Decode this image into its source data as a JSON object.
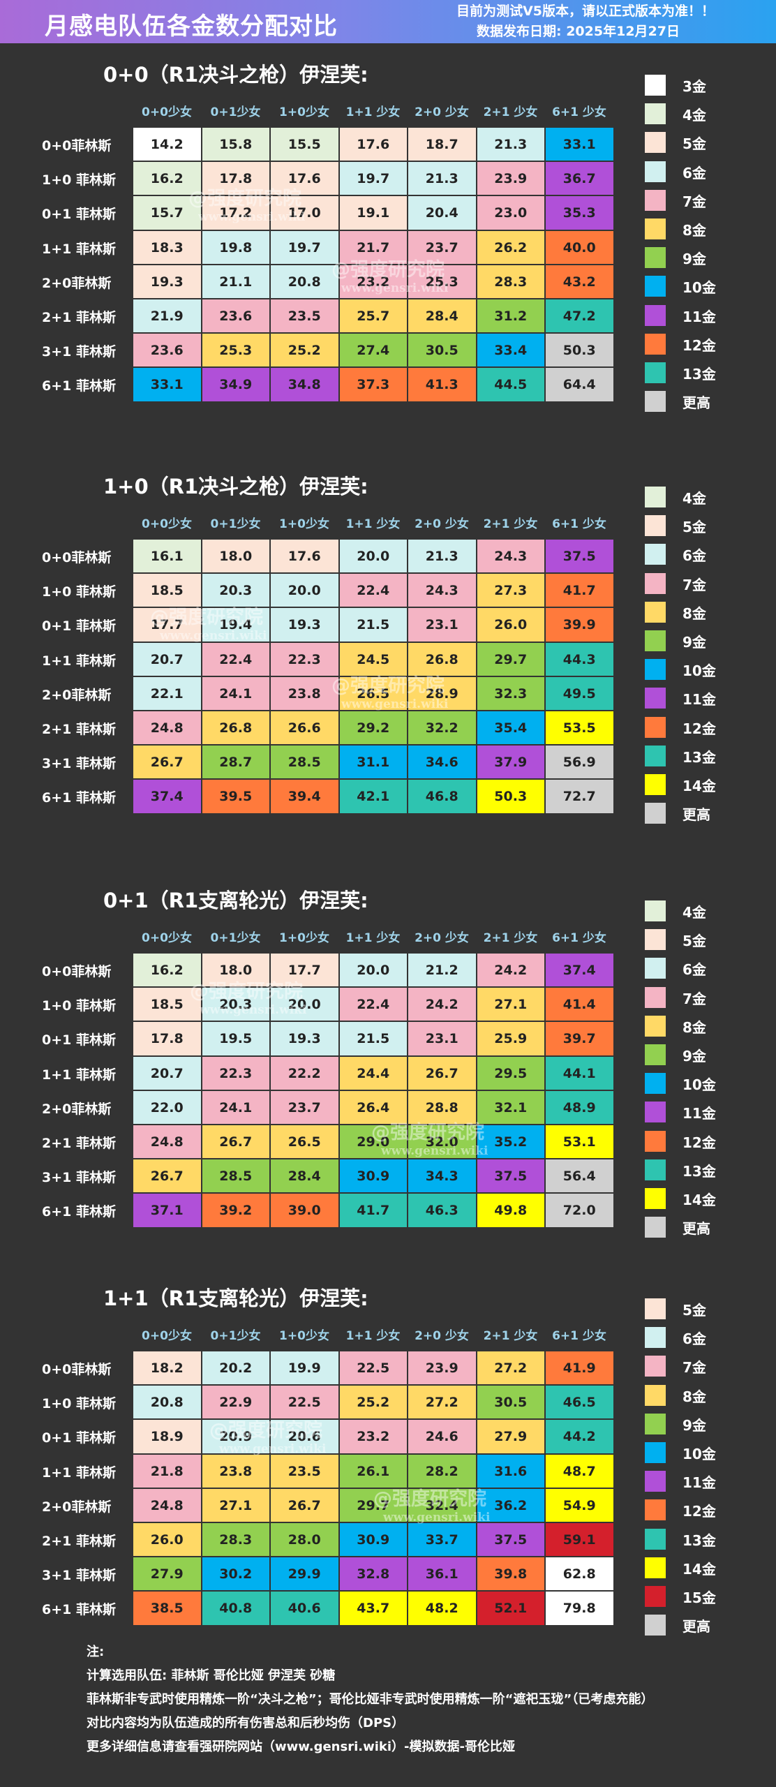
{
  "header": {
    "title": "月感电队伍各金数分配对比",
    "notice": "目前为测试V5版本，请以正式版本为准！！",
    "date": "数据发布日期: 2025年12月27日"
  },
  "columns": [
    "0+0少女",
    "0+1少女",
    "1+0少女",
    "1+1 少女",
    "2+0 少女",
    "2+1 少女",
    "6+1 少女"
  ],
  "rows": [
    "0+0菲林斯",
    "1+0 菲林斯",
    "0+1 菲林斯",
    "1+1  菲林斯",
    "2+0菲林斯",
    "2+1 菲林斯",
    "3+1 菲林斯",
    "6+1 菲林斯"
  ],
  "tier_colors": {
    "3": "#ffffff",
    "4": "#e2f0d9",
    "5": "#fce4d6",
    "6": "#d1f0f0",
    "7": "#f4b4c4",
    "8": "#ffd966",
    "9": "#92d050",
    "10": "#00b0f0",
    "11": "#b050d8",
    "12": "#ff7a3c",
    "13": "#2ec4b0",
    "14": "#ffff00",
    "15": "#d4202c",
    "high": "#d0d0d0"
  },
  "sections": [
    {
      "title": "0+0（R1决斗之枪）伊涅芙:",
      "values": [
        [
          "14.2",
          "15.8",
          "15.5",
          "17.6",
          "18.7",
          "21.3",
          "33.1"
        ],
        [
          "16.2",
          "17.8",
          "17.6",
          "19.7",
          "21.3",
          "23.9",
          "36.7"
        ],
        [
          "15.7",
          "17.2",
          "17.0",
          "19.1",
          "20.4",
          "23.0",
          "35.3"
        ],
        [
          "18.3",
          "19.8",
          "19.7",
          "21.7",
          "23.7",
          "26.2",
          "40.0"
        ],
        [
          "19.3",
          "21.1",
          "20.8",
          "23.2",
          "25.3",
          "28.3",
          "43.2"
        ],
        [
          "21.9",
          "23.6",
          "23.5",
          "25.7",
          "28.4",
          "31.2",
          "47.2"
        ],
        [
          "23.6",
          "25.3",
          "25.2",
          "27.4",
          "30.5",
          "33.4",
          "50.3"
        ],
        [
          "33.1",
          "34.9",
          "34.8",
          "37.3",
          "41.3",
          "44.5",
          "64.4"
        ]
      ],
      "tiers": [
        [
          "3",
          "4",
          "4",
          "5",
          "5",
          "6",
          "10"
        ],
        [
          "4",
          "5",
          "5",
          "6",
          "6",
          "7",
          "11"
        ],
        [
          "4",
          "5",
          "5",
          "5",
          "6",
          "7",
          "11"
        ],
        [
          "5",
          "6",
          "6",
          "7",
          "7",
          "8",
          "12"
        ],
        [
          "5",
          "6",
          "6",
          "7",
          "7",
          "8",
          "12"
        ],
        [
          "6",
          "7",
          "7",
          "8",
          "8",
          "9",
          "13"
        ],
        [
          "7",
          "8",
          "8",
          "9",
          "9",
          "10",
          "high"
        ],
        [
          "10",
          "11",
          "11",
          "12",
          "12",
          "13",
          "high"
        ]
      ],
      "legend": [
        {
          "tier": "3",
          "label": "3金"
        },
        {
          "tier": "4",
          "label": "4金"
        },
        {
          "tier": "5",
          "label": "5金"
        },
        {
          "tier": "6",
          "label": "6金"
        },
        {
          "tier": "7",
          "label": "7金"
        },
        {
          "tier": "8",
          "label": "8金"
        },
        {
          "tier": "9",
          "label": "9金"
        },
        {
          "tier": "10",
          "label": "10金"
        },
        {
          "tier": "11",
          "label": "11金"
        },
        {
          "tier": "12",
          "label": "12金"
        },
        {
          "tier": "13",
          "label": "13金"
        },
        {
          "tier": "high",
          "label": "更高"
        }
      ]
    },
    {
      "title": "1+0（R1决斗之枪）伊涅芙:",
      "values": [
        [
          "16.1",
          "18.0",
          "17.6",
          "20.0",
          "21.3",
          "24.3",
          "37.5"
        ],
        [
          "18.5",
          "20.3",
          "20.0",
          "22.4",
          "24.3",
          "27.3",
          "41.7"
        ],
        [
          "17.7",
          "19.4",
          "19.3",
          "21.5",
          "23.1",
          "26.0",
          "39.9"
        ],
        [
          "20.7",
          "22.4",
          "22.3",
          "24.5",
          "26.8",
          "29.7",
          "44.3"
        ],
        [
          "22.1",
          "24.1",
          "23.8",
          "26.5",
          "28.9",
          "32.3",
          "49.5"
        ],
        [
          "24.8",
          "26.8",
          "26.6",
          "29.2",
          "32.2",
          "35.4",
          "53.5"
        ],
        [
          "26.7",
          "28.7",
          "28.5",
          "31.1",
          "34.6",
          "37.9",
          "56.9"
        ],
        [
          "37.4",
          "39.5",
          "39.4",
          "42.1",
          "46.8",
          "50.3",
          "72.7"
        ]
      ],
      "tiers": [
        [
          "4",
          "5",
          "5",
          "6",
          "6",
          "7",
          "11"
        ],
        [
          "5",
          "6",
          "6",
          "7",
          "7",
          "8",
          "12"
        ],
        [
          "5",
          "6",
          "6",
          "6",
          "7",
          "8",
          "12"
        ],
        [
          "6",
          "7",
          "7",
          "8",
          "8",
          "9",
          "13"
        ],
        [
          "6",
          "7",
          "7",
          "8",
          "8",
          "9",
          "13"
        ],
        [
          "7",
          "8",
          "8",
          "9",
          "9",
          "10",
          "14"
        ],
        [
          "8",
          "9",
          "9",
          "10",
          "10",
          "11",
          "high"
        ],
        [
          "11",
          "12",
          "12",
          "13",
          "13",
          "14",
          "high"
        ]
      ],
      "legend": [
        {
          "tier": "4",
          "label": "4金"
        },
        {
          "tier": "5",
          "label": "5金"
        },
        {
          "tier": "6",
          "label": "6金"
        },
        {
          "tier": "7",
          "label": "7金"
        },
        {
          "tier": "8",
          "label": "8金"
        },
        {
          "tier": "9",
          "label": "9金"
        },
        {
          "tier": "10",
          "label": "10金"
        },
        {
          "tier": "11",
          "label": "11金"
        },
        {
          "tier": "12",
          "label": "12金"
        },
        {
          "tier": "13",
          "label": "13金"
        },
        {
          "tier": "14",
          "label": "14金"
        },
        {
          "tier": "high",
          "label": "更高"
        }
      ]
    },
    {
      "title": "0+1（R1支离轮光）伊涅芙:",
      "values": [
        [
          "16.2",
          "18.0",
          "17.7",
          "20.0",
          "21.2",
          "24.2",
          "37.4"
        ],
        [
          "18.5",
          "20.3",
          "20.0",
          "22.4",
          "24.2",
          "27.1",
          "41.4"
        ],
        [
          "17.8",
          "19.5",
          "19.3",
          "21.5",
          "23.1",
          "25.9",
          "39.7"
        ],
        [
          "20.7",
          "22.3",
          "22.2",
          "24.4",
          "26.7",
          "29.5",
          "44.1"
        ],
        [
          "22.0",
          "24.1",
          "23.7",
          "26.4",
          "28.8",
          "32.1",
          "48.9"
        ],
        [
          "24.8",
          "26.7",
          "26.5",
          "29.0",
          "32.0",
          "35.2",
          "53.1"
        ],
        [
          "26.7",
          "28.5",
          "28.4",
          "30.9",
          "34.3",
          "37.5",
          "56.4"
        ],
        [
          "37.1",
          "39.2",
          "39.0",
          "41.7",
          "46.3",
          "49.8",
          "72.0"
        ]
      ],
      "tiers": [
        [
          "4",
          "5",
          "5",
          "6",
          "6",
          "7",
          "11"
        ],
        [
          "5",
          "6",
          "6",
          "7",
          "7",
          "8",
          "12"
        ],
        [
          "5",
          "6",
          "6",
          "6",
          "7",
          "8",
          "12"
        ],
        [
          "6",
          "7",
          "7",
          "8",
          "8",
          "9",
          "13"
        ],
        [
          "6",
          "7",
          "7",
          "8",
          "8",
          "9",
          "13"
        ],
        [
          "7",
          "8",
          "8",
          "9",
          "9",
          "10",
          "14"
        ],
        [
          "8",
          "9",
          "9",
          "10",
          "10",
          "11",
          "high"
        ],
        [
          "11",
          "12",
          "12",
          "13",
          "13",
          "14",
          "high"
        ]
      ],
      "legend": [
        {
          "tier": "4",
          "label": "4金"
        },
        {
          "tier": "5",
          "label": "5金"
        },
        {
          "tier": "6",
          "label": "6金"
        },
        {
          "tier": "7",
          "label": "7金"
        },
        {
          "tier": "8",
          "label": "8金"
        },
        {
          "tier": "9",
          "label": "9金"
        },
        {
          "tier": "10",
          "label": "10金"
        },
        {
          "tier": "11",
          "label": "11金"
        },
        {
          "tier": "12",
          "label": "12金"
        },
        {
          "tier": "13",
          "label": "13金"
        },
        {
          "tier": "14",
          "label": "14金"
        },
        {
          "tier": "high",
          "label": "更高"
        }
      ]
    },
    {
      "title": "1+1（R1支离轮光）伊涅芙:",
      "values": [
        [
          "18.2",
          "20.2",
          "19.9",
          "22.5",
          "23.9",
          "27.2",
          "41.9"
        ],
        [
          "20.8",
          "22.9",
          "22.5",
          "25.2",
          "27.2",
          "30.5",
          "46.5"
        ],
        [
          "18.9",
          "20.9",
          "20.6",
          "23.2",
          "24.6",
          "27.9",
          "44.2"
        ],
        [
          "21.8",
          "23.8",
          "23.5",
          "26.1",
          "28.2",
          "31.6",
          "48.7"
        ],
        [
          "24.8",
          "27.1",
          "26.7",
          "29.7",
          "32.4",
          "36.2",
          "54.9"
        ],
        [
          "26.0",
          "28.3",
          "28.0",
          "30.9",
          "33.7",
          "37.5",
          "59.1"
        ],
        [
          "27.9",
          "30.2",
          "29.9",
          "32.8",
          "36.1",
          "39.8",
          "62.8"
        ],
        [
          "38.5",
          "40.8",
          "40.6",
          "43.7",
          "48.2",
          "52.1",
          "79.8"
        ]
      ],
      "tiers": [
        [
          "5",
          "6",
          "6",
          "7",
          "7",
          "8",
          "12"
        ],
        [
          "6",
          "7",
          "7",
          "8",
          "8",
          "9",
          "13"
        ],
        [
          "5",
          "6",
          "6",
          "7",
          "7",
          "8",
          "13"
        ],
        [
          "7",
          "8",
          "8",
          "9",
          "9",
          "10",
          "14"
        ],
        [
          "7",
          "8",
          "8",
          "9",
          "9",
          "10",
          "14"
        ],
        [
          "8",
          "9",
          "9",
          "10",
          "10",
          "11",
          "15"
        ],
        [
          "9",
          "10",
          "10",
          "11",
          "11",
          "12",
          "3"
        ],
        [
          "12",
          "13",
          "13",
          "14",
          "14",
          "15",
          "3"
        ]
      ],
      "legend": [
        {
          "tier": "5",
          "label": "5金"
        },
        {
          "tier": "6",
          "label": "6金"
        },
        {
          "tier": "7",
          "label": "7金"
        },
        {
          "tier": "8",
          "label": "8金"
        },
        {
          "tier": "9",
          "label": "9金"
        },
        {
          "tier": "10",
          "label": "10金"
        },
        {
          "tier": "11",
          "label": "11金"
        },
        {
          "tier": "12",
          "label": "12金"
        },
        {
          "tier": "13",
          "label": "13金"
        },
        {
          "tier": "14",
          "label": "14金"
        },
        {
          "tier": "15",
          "label": "15金"
        },
        {
          "tier": "high",
          "label": "更高"
        }
      ]
    }
  ],
  "watermark": {
    "name": "@强度研究院",
    "site": "www.gensri.wiki"
  },
  "notes": [
    "注:",
    "计算选用队伍: 菲林斯  哥伦比娅  伊涅芙  砂糖",
    "菲林斯非专武时使用精炼一阶“决斗之枪”；哥伦比娅非专武时使用精炼一阶“遮祀玉珑”（已考虑充能）",
    "对比内容均为队伍造成的所有伤害总和后秒均伤（DPS）",
    "更多详细信息请查看强研院网站（www.gensri.wiki）-模拟数据-哥伦比娅"
  ]
}
